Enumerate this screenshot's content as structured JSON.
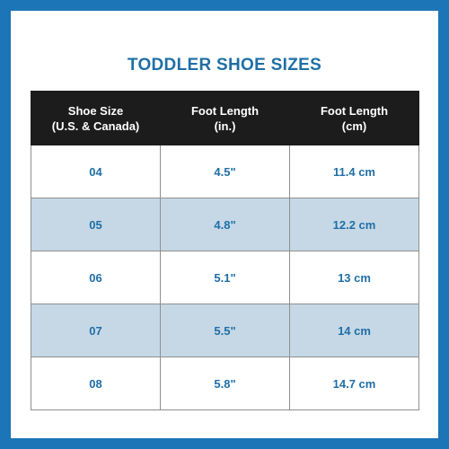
{
  "title": "TODDLER SHOE SIZES",
  "headers": [
    {
      "line1": "Shoe Size",
      "line2": "(U.S. & Canada)"
    },
    {
      "line1": "Foot Length",
      "line2": "(in.)"
    },
    {
      "line1": "Foot Length",
      "line2": "(cm)"
    }
  ],
  "rows": [
    {
      "size": "04",
      "inches": "4.5\"",
      "cm": "11.4 cm"
    },
    {
      "size": "05",
      "inches": "4.8\"",
      "cm": "12.2 cm"
    },
    {
      "size": "06",
      "inches": "5.1\"",
      "cm": "13 cm"
    },
    {
      "size": "07",
      "inches": "5.5\"",
      "cm": "14 cm"
    },
    {
      "size": "08",
      "inches": "5.8\"",
      "cm": "14.7 cm"
    }
  ],
  "colors": {
    "background": "#1b75b6",
    "title_text": "#1f6fa6",
    "header_bg": "#1c1c1c",
    "row_shade": "#c6d8e6"
  }
}
